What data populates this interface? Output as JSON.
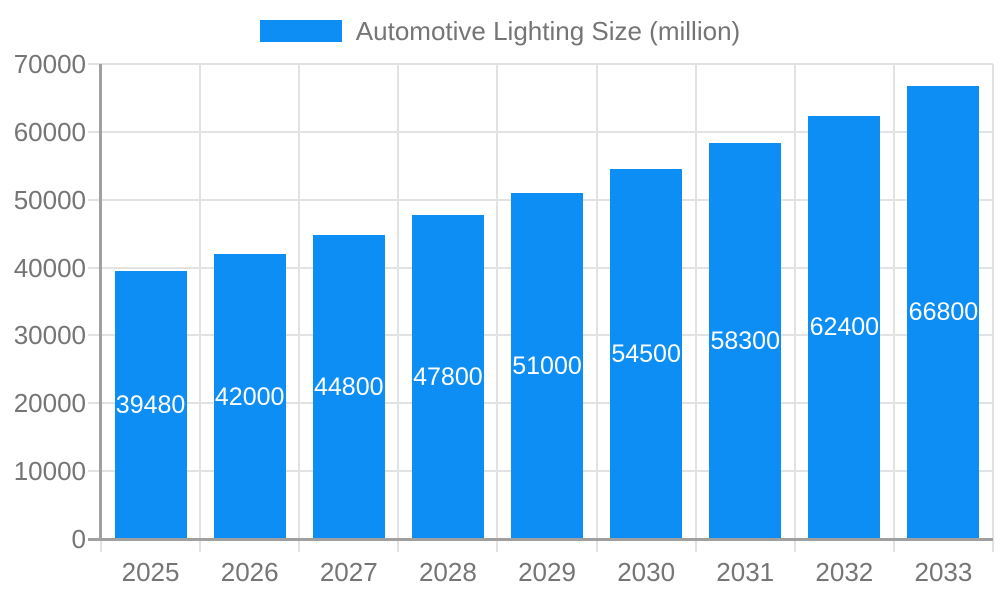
{
  "chart_data": {
    "type": "bar",
    "title": "Automotive Lighting Size (million)",
    "legend_label": "Automotive Lighting Size (million)",
    "legend_position": "top",
    "categories": [
      "2025",
      "2026",
      "2027",
      "2028",
      "2029",
      "2030",
      "2031",
      "2032",
      "2033"
    ],
    "values": [
      39480,
      42000,
      44800,
      47800,
      51000,
      54500,
      58300,
      62400,
      66800
    ],
    "bar_value_labels": [
      "39480",
      "42000",
      "44800",
      "47800",
      "51000",
      "54500",
      "58300",
      "62400",
      "66800"
    ],
    "xlabel": "",
    "ylabel": "",
    "ylim": [
      0,
      70000
    ],
    "yticks": [
      0,
      10000,
      20000,
      30000,
      40000,
      50000,
      60000,
      70000
    ],
    "ytick_labels": [
      "0",
      "10000",
      "20000",
      "30000",
      "40000",
      "50000",
      "60000",
      "70000"
    ],
    "grid": true,
    "colors": {
      "bar": "#0d8ef5",
      "bar_label_text": "#ffffff",
      "axis_text": "#757575",
      "legend_text": "#757575",
      "gridline": "#e2e2e2",
      "axis_line": "#a0a0a0",
      "background": "#ffffff"
    }
  }
}
